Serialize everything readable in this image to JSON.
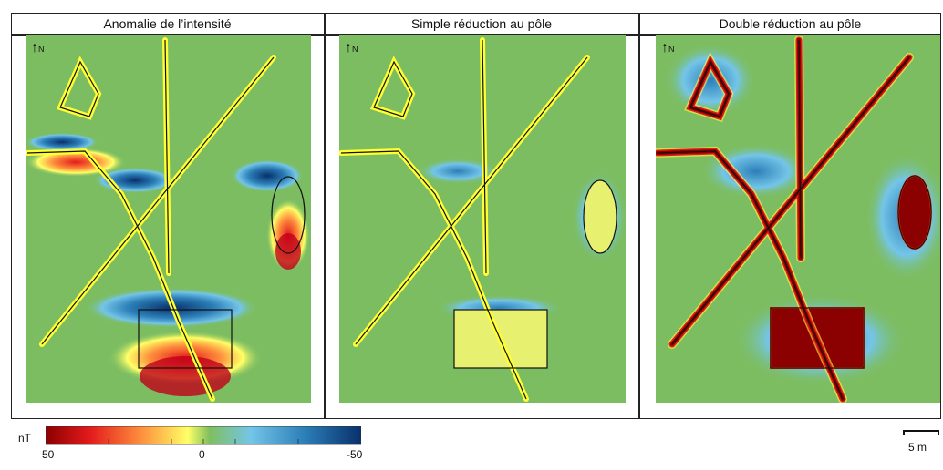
{
  "panels": [
    {
      "title": "Anomalie de l’intensité",
      "north": "N",
      "style": "intensity"
    },
    {
      "title": "Simple réduction au pôle",
      "north": "N",
      "style": "simple"
    },
    {
      "title": "Double réduction au pôle",
      "north": "N",
      "style": "double"
    }
  ],
  "colorbar": {
    "unit": "nT",
    "labels": [
      "50",
      "0",
      "-50"
    ],
    "colors": [
      "#8b0000",
      "#e31a1c",
      "#fd8d3c",
      "#ffff66",
      "#7fbf5f",
      "#74c5e8",
      "#2c7fb8",
      "#08306b"
    ]
  },
  "scale_bar": {
    "label": "5 m"
  },
  "colors": {
    "background": "#7cbd62",
    "positive": "#ffff33",
    "strong": "#8b0000",
    "negative": "#2b8cbe"
  }
}
